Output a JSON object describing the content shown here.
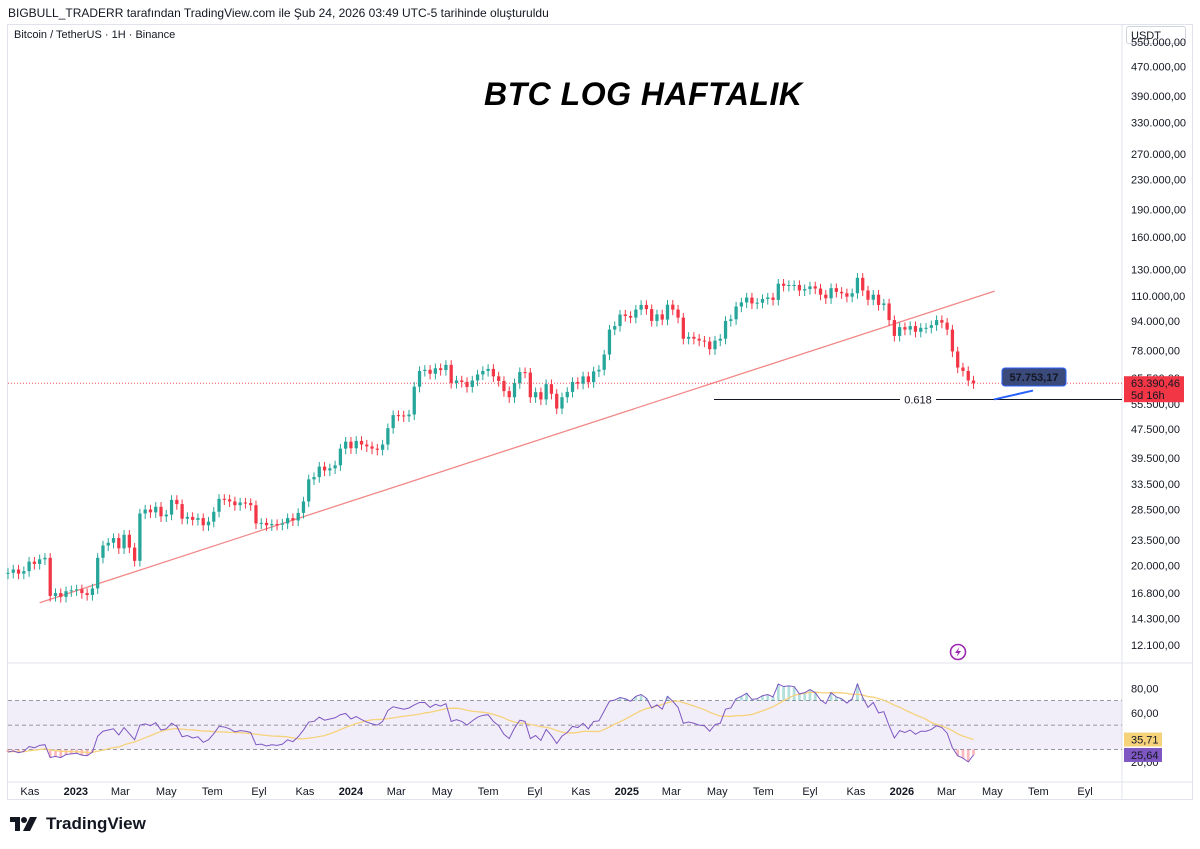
{
  "header": {
    "text": "BIGBULL_TRADERR tarafından TradingView.com ile Şub 24, 2026 03:49 UTC-5 tarihinde oluşturuldu"
  },
  "symbol": {
    "text": "Bitcoin / TetherUS · 1H · Binance"
  },
  "currency": "USDT",
  "footer": {
    "brand": "TradingView",
    "icon": "tradingview-logo-icon"
  },
  "colors": {
    "up": "#26a69a",
    "down": "#f23645",
    "trendline": "#f28888",
    "rsi": "#7e57c2",
    "rsi_ma": "#f6d27b",
    "rsi_band": "#7e57c2"
  },
  "chart_data": [
    {
      "type": "candlestick",
      "title": "BTC LOG HAFTALIK",
      "scale": "log",
      "ylim": [
        11000,
        600000
      ],
      "y_ticks": [
        "550.000,00",
        "470.000,00",
        "390.000,00",
        "330.000,00",
        "270.000,00",
        "230.000,00",
        "190.000,00",
        "160.000,00",
        "130.000,00",
        "110.000,00",
        "94.000,00",
        "78.000,00",
        "65.500,00",
        "55.500,00",
        "47.500,00",
        "39.500,00",
        "33.500,00",
        "28.500,00",
        "23.500,00",
        "20.000,00",
        "16.800,00",
        "14.300,00",
        "12.100,00"
      ],
      "y_tick_values": [
        550000,
        470000,
        390000,
        330000,
        270000,
        230000,
        190000,
        160000,
        130000,
        110000,
        94000,
        78000,
        65500,
        55500,
        47500,
        39500,
        33500,
        28500,
        23500,
        20000,
        16800,
        14300,
        12100
      ],
      "x_ticks": [
        "Kas",
        "2023",
        "Mar",
        "May",
        "Tem",
        "Eyl",
        "Kas",
        "2024",
        "Mar",
        "May",
        "Tem",
        "Eyl",
        "Kas",
        "2025",
        "Mar",
        "May",
        "Tem",
        "Eyl",
        "Kas",
        "2026",
        "Mar",
        "May",
        "Tem",
        "Eyl"
      ],
      "x_ticks_bold": [
        "2023",
        "2024",
        "2025",
        "2026"
      ],
      "x_tick_dates": [
        "2022-11-01",
        "2023-01-01",
        "2023-03-01",
        "2023-05-01",
        "2023-07-01",
        "2023-09-01",
        "2023-11-01",
        "2024-01-01",
        "2024-03-01",
        "2024-05-01",
        "2024-07-01",
        "2024-09-01",
        "2024-11-01",
        "2025-01-01",
        "2025-03-01",
        "2025-05-01",
        "2025-07-01",
        "2025-09-01",
        "2025-11-01",
        "2026-01-01",
        "2026-03-01",
        "2026-05-01",
        "2026-07-01",
        "2026-09-01"
      ],
      "x_start": "2022-10-03",
      "x_end": "2026-10-20",
      "closes": [
        19100,
        19500,
        19000,
        19300,
        20500,
        20200,
        20800,
        21000,
        16500,
        16800,
        16400,
        17000,
        17100,
        17200,
        16800,
        16600,
        17300,
        21000,
        22700,
        23100,
        23800,
        22300,
        24300,
        22400,
        20600,
        27800,
        28500,
        28000,
        29000,
        27300,
        27600,
        30300,
        29500,
        26900,
        27200,
        26700,
        27000,
        25800,
        26400,
        28100,
        30500,
        30400,
        30000,
        29300,
        29800,
        29700,
        29300,
        26100,
        26200,
        25800,
        26000,
        25900,
        26100,
        27000,
        26600,
        27900,
        30000,
        34500,
        35000,
        37400,
        36500,
        37000,
        37700,
        41900,
        43800,
        42000,
        44000,
        43000,
        42500,
        41900,
        41600,
        43000,
        47700,
        51800,
        51700,
        51400,
        52000,
        62000,
        68500,
        69000,
        67300,
        69700,
        68900,
        71200,
        63500,
        64500,
        63900,
        61900,
        64500,
        67000,
        68500,
        69400,
        66200,
        64300,
        60300,
        58000,
        63400,
        68000,
        67800,
        58000,
        59900,
        57200,
        63000,
        59300,
        54000,
        58000,
        60000,
        63900,
        63200,
        66200,
        63800,
        68300,
        69000,
        76000,
        89000,
        91000,
        97900,
        97000,
        96000,
        101000,
        104000,
        101300,
        94000,
        98000,
        94800,
        104200,
        101000,
        96000,
        84000,
        85000,
        84000,
        83000,
        82500,
        78600,
        83000,
        84000,
        94000,
        95000,
        103000,
        105700,
        109000,
        105000,
        105500,
        108000,
        109000,
        107400,
        119000,
        117400,
        118000,
        118000,
        114000,
        115000,
        117000,
        115400,
        111000,
        108500,
        115700,
        113000,
        112000,
        109600,
        112000,
        123500,
        114000,
        107500,
        111000,
        104000,
        105000,
        94500,
        85500,
        90400,
        89000,
        91000,
        87800,
        90000,
        90000,
        91500,
        94500,
        93000,
        89000,
        77500,
        70000,
        68500,
        64500,
        63390
      ],
      "series": [
        {
          "name": "RSI",
          "values": [
            36,
            38,
            35,
            37,
            45,
            43,
            47,
            48,
            27,
            29,
            27,
            32,
            33,
            34,
            31,
            30,
            36,
            62,
            70,
            72,
            74,
            64,
            76,
            66,
            56,
            80,
            82,
            79,
            84,
            72,
            74,
            83,
            78,
            61,
            63,
            59,
            61,
            52,
            56,
            66,
            78,
            77,
            74,
            69,
            71,
            70,
            68,
            48,
            49,
            46,
            48,
            47,
            49,
            56,
            53,
            61,
            72,
            85,
            86,
            93,
            88,
            90,
            92,
            97,
            99,
            90,
            94,
            89,
            85,
            82,
            80,
            86,
            104,
            110,
            108,
            106,
            108,
            113,
            117,
            117,
            109,
            114,
            111,
            115,
            86,
            89,
            86,
            80,
            87,
            93,
            96,
            97,
            86,
            79,
            65,
            58,
            75,
            88,
            86,
            58,
            63,
            55,
            73,
            63,
            50,
            62,
            68,
            78,
            76,
            83,
            74,
            86,
            87,
            103,
            119,
            121,
            125,
            123,
            119,
            127,
            130,
            124,
            108,
            113,
            106,
            127,
            119,
            109,
            83,
            85,
            83,
            80,
            79,
            70,
            81,
            83,
            106,
            108,
            123,
            127,
            132,
            122,
            123,
            128,
            130,
            126,
            147,
            143,
            144,
            143,
            131,
            133,
            138,
            133,
            121,
            115,
            133,
            126,
            123,
            116,
            123,
            147,
            125,
            109,
            117,
            100,
            102,
            79,
            59,
            71,
            68,
            72,
            65,
            70,
            70,
            73,
            79,
            76,
            67,
            43,
            30,
            26,
            20,
            25.64
          ]
        },
        {
          "name": "RSI MA",
          "values": []
        }
      ],
      "rsi_levels": {
        "upper": 70,
        "middle": 50,
        "lower": 30
      },
      "last_price": "63.390,46",
      "countdown": "5d 16h",
      "fib": {
        "label": "0.618",
        "value": 57200
      },
      "cursor_price": "57.753,17",
      "trendline": {
        "start": [
          "2022-11-14",
          15800
        ],
        "end": [
          "2026-05-04",
          113500
        ]
      }
    },
    {
      "type": "line",
      "name": "RSI",
      "y_ticks": [
        "80,00",
        "60,00",
        "40,00",
        "20,00"
      ],
      "y_tick_values": [
        80,
        60,
        40,
        20
      ],
      "ylim": [
        15,
        95
      ],
      "rsi_last": "25,64",
      "rsi_ma_last": "35,71"
    }
  ]
}
